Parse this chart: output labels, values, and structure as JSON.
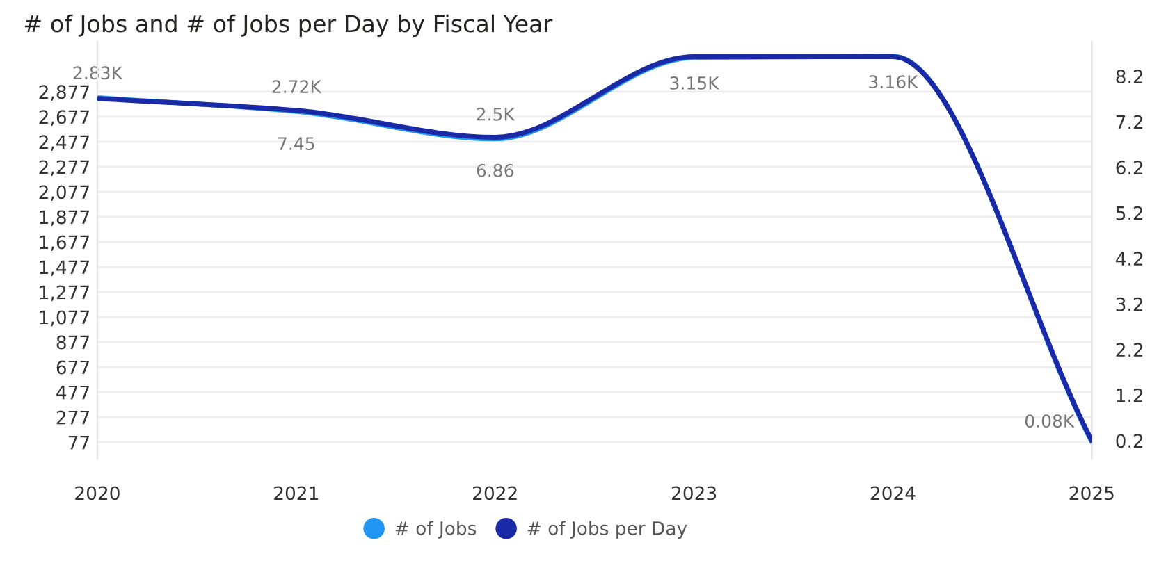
{
  "chart_data": {
    "type": "line",
    "title": "# of Jobs and # of Jobs per Day by Fiscal Year",
    "categories": [
      "2020",
      "2021",
      "2022",
      "2023",
      "2024",
      "2025"
    ],
    "series": [
      {
        "name": "# of Jobs",
        "color": "#2196f3",
        "values": [
          2830,
          2720,
          2500,
          3150,
          3160,
          80
        ],
        "value_labels": [
          "2.83K",
          "2.72K",
          "2.5K",
          "3.15K",
          "3.16K",
          "0.08K"
        ]
      },
      {
        "name": "# of Jobs per Day",
        "color": "#1a2aa6",
        "axis": "y2",
        "values": [
          7.71,
          7.45,
          6.86,
          8.63,
          8.63,
          0.2
        ],
        "value_labels": [
          null,
          "7.45",
          "6.86",
          null,
          null,
          null
        ]
      }
    ],
    "ylim": [
      -56,
      3277
    ],
    "yticks": [
      {
        "value": 77,
        "label": "77"
      },
      {
        "value": 277,
        "label": "277"
      },
      {
        "value": 477,
        "label": "477"
      },
      {
        "value": 677,
        "label": "677"
      },
      {
        "value": 877,
        "label": "877"
      },
      {
        "value": 1077,
        "label": "1,077"
      },
      {
        "value": 1277,
        "label": "1,277"
      },
      {
        "value": 1477,
        "label": "1,477"
      },
      {
        "value": 1677,
        "label": "1,677"
      },
      {
        "value": 1877,
        "label": "1,877"
      },
      {
        "value": 2077,
        "label": "2,077"
      },
      {
        "value": 2277,
        "label": "2,277"
      },
      {
        "value": 2477,
        "label": "2,477"
      },
      {
        "value": 2677,
        "label": "2,677"
      },
      {
        "value": 2877,
        "label": "2,877"
      }
    ],
    "y2lim": [
      -0.2,
      8.96
    ],
    "y2ticks": [
      0.2,
      1.2,
      2.2,
      3.2,
      4.2,
      5.2,
      6.2,
      7.2,
      8.2
    ],
    "grid": "y",
    "legend": "bottom",
    "marker": "none",
    "line_style": "solid"
  }
}
